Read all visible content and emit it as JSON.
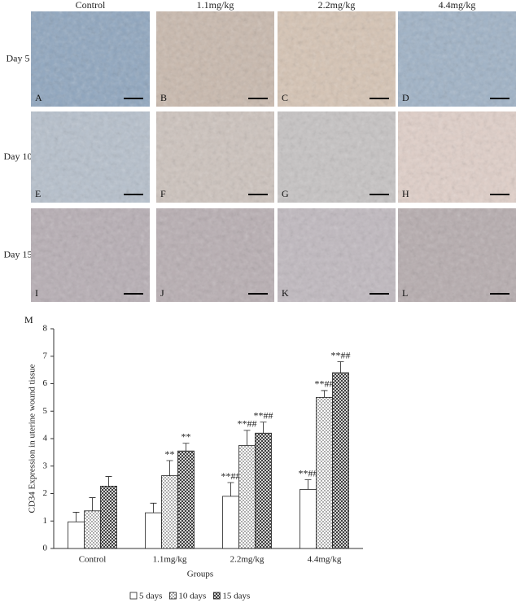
{
  "panels": {
    "columns": [
      "Control",
      "1.1mg/kg",
      "2.2mg/kg",
      "4.4mg/kg"
    ],
    "rows": [
      "Day 5",
      "Day 10",
      "Day 15"
    ],
    "letters": [
      [
        "A",
        "B",
        "C",
        "D"
      ],
      [
        "E",
        "F",
        "G",
        "H"
      ],
      [
        "I",
        "J",
        "K",
        "L"
      ]
    ],
    "chart_letter": "M"
  },
  "chart_data": {
    "type": "bar",
    "categories": [
      "Control",
      "1.1mg/kg",
      "2.2mg/kg",
      "4.4mg/kg"
    ],
    "x_label": "Groups",
    "y_label": "CD34 Expression in uterine wound tissue",
    "ylim": [
      0,
      8
    ],
    "yticks": [
      0,
      1,
      2,
      3,
      4,
      5,
      6,
      7,
      8
    ],
    "series": [
      {
        "name": "5 days",
        "color": "#ffffff",
        "pattern": "none",
        "values": [
          0.97,
          1.3,
          1.9,
          2.15
        ],
        "errors": [
          0.35,
          0.35,
          0.5,
          0.35
        ],
        "annotations": [
          null,
          null,
          "**##",
          "**##"
        ]
      },
      {
        "name": "10 days",
        "color": "#ffffff",
        "pattern": "dots",
        "values": [
          1.37,
          2.65,
          3.75,
          5.5
        ],
        "errors": [
          0.48,
          0.55,
          0.55,
          0.25
        ],
        "annotations": [
          null,
          "**",
          "**##",
          "**##"
        ]
      },
      {
        "name": "15 days",
        "color": "#ffffff",
        "pattern": "crosshatch",
        "values": [
          2.27,
          3.55,
          4.2,
          6.4
        ],
        "errors": [
          0.35,
          0.28,
          0.4,
          0.4
        ],
        "annotations": [
          null,
          "**",
          "**##",
          "**##"
        ]
      }
    ]
  }
}
